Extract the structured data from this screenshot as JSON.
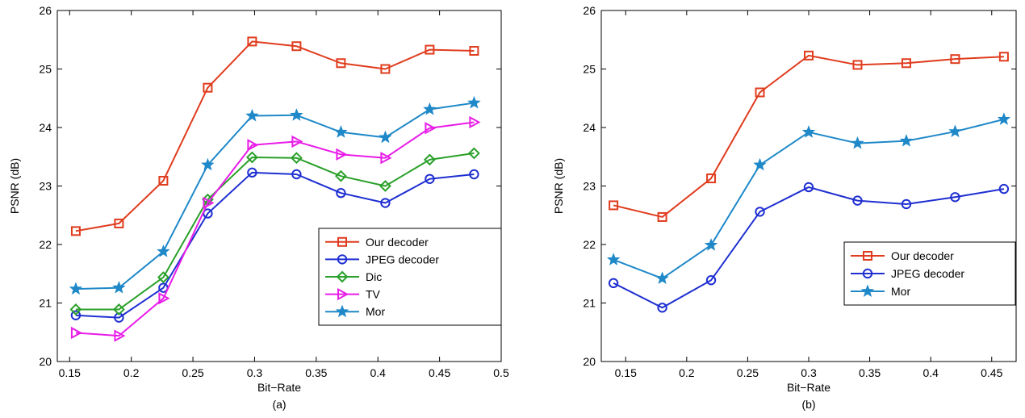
{
  "chart_data": [
    {
      "type": "line",
      "panel_label": "(a)",
      "xlabel": "Bit−Rate",
      "ylabel": "PSNR (dB)",
      "xlim": [
        0.14,
        0.5
      ],
      "ylim": [
        20,
        26
      ],
      "xticks": [
        0.15,
        0.2,
        0.25,
        0.3,
        0.35,
        0.4,
        0.45,
        0.5
      ],
      "xtick_labels": [
        "0.15",
        "0.2",
        "0.25",
        "0.3",
        "0.35",
        "0.4",
        "0.45",
        "0.5"
      ],
      "yticks": [
        20,
        21,
        22,
        23,
        24,
        25,
        26
      ],
      "ytick_labels": [
        "20",
        "21",
        "22",
        "23",
        "24",
        "25",
        "26"
      ],
      "grid": false,
      "legend_position": "lower-right",
      "x": [
        0.155,
        0.19,
        0.226,
        0.262,
        0.298,
        0.334,
        0.37,
        0.406,
        0.442,
        0.478
      ],
      "series": [
        {
          "name": "Our decoder",
          "color": "#e03c1e",
          "marker": "square",
          "values": [
            22.23,
            22.36,
            23.09,
            24.68,
            25.47,
            25.39,
            25.1,
            25.0,
            25.33,
            25.31
          ]
        },
        {
          "name": "JPEG decoder",
          "color": "#1f2fd1",
          "marker": "circle",
          "values": [
            20.79,
            20.75,
            21.26,
            22.53,
            23.23,
            23.2,
            22.88,
            22.71,
            23.12,
            23.2
          ]
        },
        {
          "name": "Dic",
          "color": "#2aa02a",
          "marker": "diamond",
          "values": [
            20.89,
            20.89,
            21.44,
            22.77,
            23.49,
            23.48,
            23.17,
            23.0,
            23.45,
            23.56
          ]
        },
        {
          "name": "TV",
          "color": "#e81ce8",
          "marker": "triangle-right",
          "values": [
            20.49,
            20.44,
            21.08,
            22.71,
            23.7,
            23.76,
            23.54,
            23.48,
            23.99,
            24.09
          ]
        },
        {
          "name": "Mor",
          "color": "#1e88c8",
          "marker": "star",
          "values": [
            21.24,
            21.26,
            21.88,
            23.36,
            24.2,
            24.21,
            23.92,
            23.83,
            24.31,
            24.42
          ]
        }
      ]
    },
    {
      "type": "line",
      "panel_label": "(b)",
      "xlabel": "Bit−Rate",
      "ylabel": "PSNR (dB)",
      "xlim": [
        0.13,
        0.47
      ],
      "ylim": [
        20,
        26
      ],
      "xticks": [
        0.15,
        0.2,
        0.25,
        0.3,
        0.35,
        0.4,
        0.45
      ],
      "xtick_labels": [
        "0.15",
        "0.2",
        "0.25",
        "0.3",
        "0.35",
        "0.4",
        "0.45"
      ],
      "yticks": [
        20,
        21,
        22,
        23,
        24,
        25,
        26
      ],
      "ytick_labels": [
        "20",
        "21",
        "22",
        "23",
        "24",
        "25",
        "26"
      ],
      "grid": false,
      "legend_position": "lower-right",
      "x": [
        0.14,
        0.18,
        0.22,
        0.26,
        0.3,
        0.34,
        0.38,
        0.42,
        0.46
      ],
      "series": [
        {
          "name": "Our decoder",
          "color": "#e03c1e",
          "marker": "square",
          "values": [
            22.67,
            22.47,
            23.13,
            24.6,
            25.23,
            25.07,
            25.1,
            25.17,
            25.21
          ]
        },
        {
          "name": "JPEG decoder",
          "color": "#1f2fd1",
          "marker": "circle",
          "values": [
            21.34,
            20.92,
            21.39,
            22.56,
            22.98,
            22.75,
            22.69,
            22.81,
            22.95
          ]
        },
        {
          "name": "Mor",
          "color": "#1e88c8",
          "marker": "star",
          "values": [
            21.74,
            21.42,
            21.99,
            23.36,
            23.92,
            23.73,
            23.77,
            23.93,
            24.14
          ]
        }
      ]
    }
  ]
}
